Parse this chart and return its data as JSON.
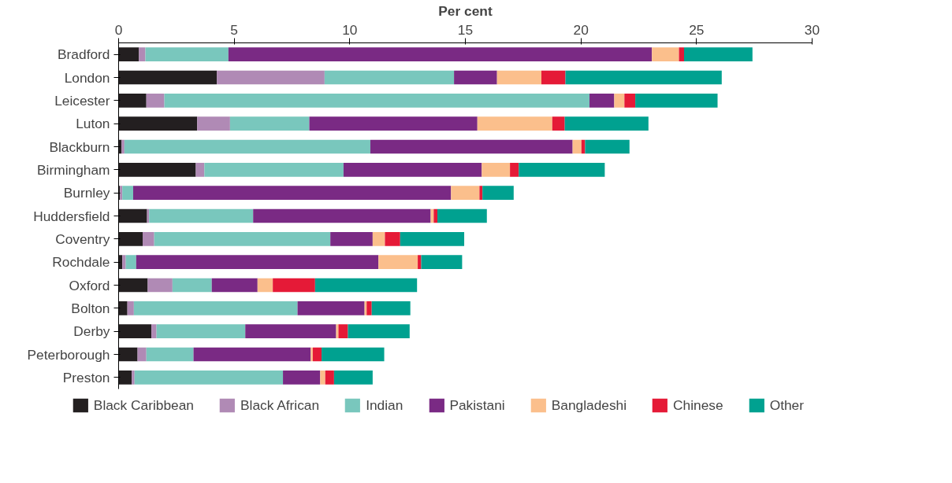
{
  "chart_data": {
    "type": "bar",
    "orientation": "horizontal",
    "stacked": true,
    "xlabel": "Per cent",
    "categories": [
      "Bradford",
      "London",
      "Leicester",
      "Luton",
      "Blackburn",
      "Birmingham",
      "Burnley",
      "Huddersfield",
      "Coventry",
      "Rochdale",
      "Oxford",
      "Bolton",
      "Derby",
      "Peterborough",
      "Preston"
    ],
    "series": [
      {
        "name": "Black Caribbean",
        "color": "#231f20",
        "values": [
          0.88,
          4.25,
          1.2,
          3.4,
          0.13,
          3.34,
          0.06,
          1.23,
          1.04,
          0.16,
          1.26,
          0.38,
          1.42,
          0.82,
          0.57
        ]
      },
      {
        "name": "Black African",
        "color": "#b08ab5",
        "values": [
          0.28,
          4.66,
          0.78,
          1.42,
          0.12,
          0.37,
          0.1,
          0.09,
          0.5,
          0.15,
          1.07,
          0.28,
          0.22,
          0.38,
          0.12
        ]
      },
      {
        "name": "Indian",
        "color": "#79c7bd",
        "values": [
          3.59,
          5.6,
          18.39,
          3.43,
          10.64,
          6.02,
          0.47,
          4.5,
          7.62,
          0.45,
          1.7,
          7.08,
          3.84,
          2.04,
          6.42
        ]
      },
      {
        "name": "Pakistani",
        "color": "#7a2a84",
        "values": [
          18.32,
          1.86,
          1.07,
          7.27,
          8.75,
          5.98,
          13.75,
          7.68,
          1.83,
          10.48,
          1.98,
          2.9,
          3.93,
          5.07,
          1.61
        ]
      },
      {
        "name": "Bangladeshi",
        "color": "#fbbf8c",
        "values": [
          1.17,
          1.92,
          0.44,
          3.24,
          0.38,
          1.22,
          1.23,
          0.13,
          0.53,
          1.7,
          0.66,
          0.09,
          0.1,
          0.09,
          0.22
        ]
      },
      {
        "name": "Chinese",
        "color": "#e51a37",
        "values": [
          0.22,
          1.04,
          0.47,
          0.54,
          0.16,
          0.38,
          0.13,
          0.16,
          0.66,
          0.15,
          1.83,
          0.22,
          0.41,
          0.38,
          0.38
        ]
      },
      {
        "name": "Other",
        "color": "#00a190",
        "values": [
          2.96,
          6.76,
          3.56,
          3.62,
          1.92,
          3.72,
          1.35,
          2.14,
          2.77,
          1.77,
          4.41,
          1.67,
          2.67,
          2.71,
          1.67
        ]
      }
    ],
    "xlim": [
      0,
      30
    ],
    "xticks": [
      0,
      5,
      10,
      15,
      20,
      25,
      30
    ],
    "grid": false,
    "legend": "bottom"
  }
}
